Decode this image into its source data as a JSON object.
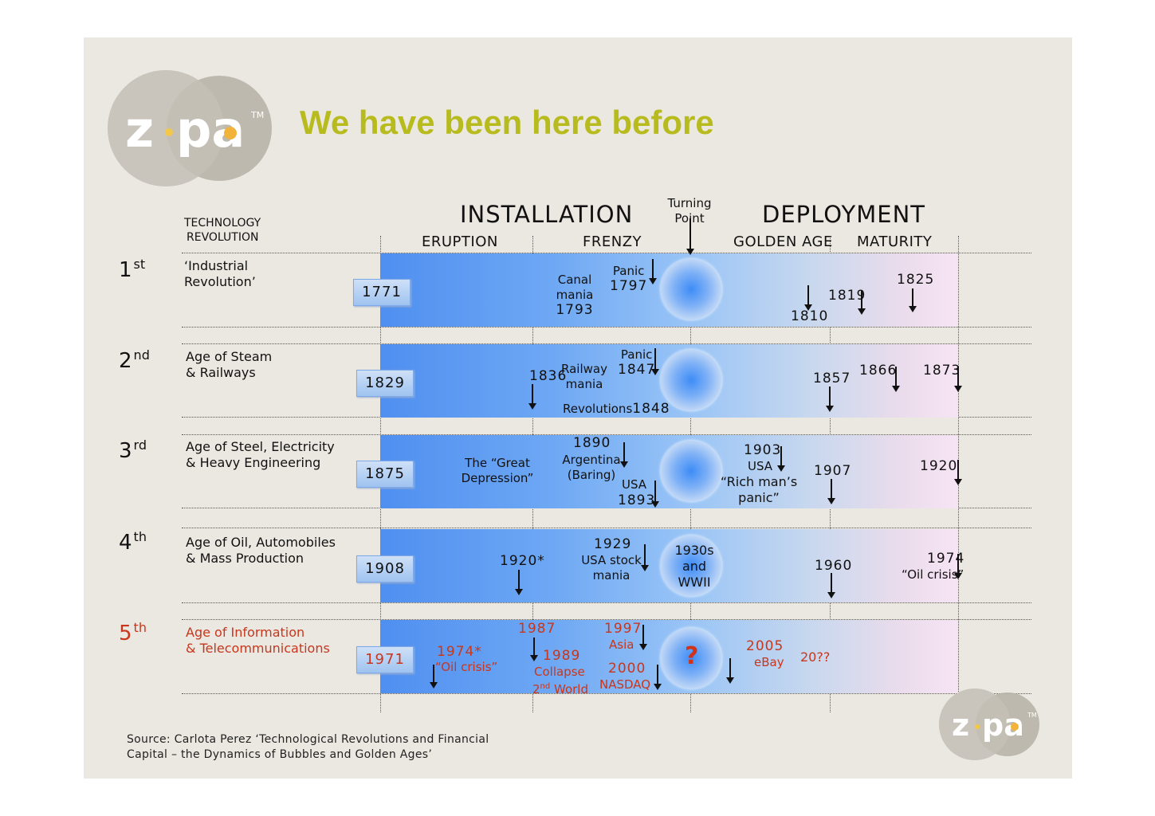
{
  "slide": {
    "title": "We have been here before",
    "logo_text": "zopa",
    "logo_tm": "TM",
    "colors": {
      "title": "#b8bb1e",
      "background": "#ebe8e1",
      "highlight_red": "#c8361c",
      "band_start": "#4f8ff0",
      "band_end": "#f6e4f4"
    }
  },
  "header": {
    "installation": "INSTALLATION",
    "deployment": "DEPLOYMENT",
    "turning_point_1": "Turning",
    "turning_point_2": "Point",
    "eruption": "ERUPTION",
    "frenzy": "FRENZY",
    "golden_age": "GOLDEN AGE",
    "maturity": "MATURITY",
    "tech_rev_1": "TECHNOLOGY",
    "tech_rev_2": "REVOLUTION"
  },
  "revolutions": [
    {
      "ordinal": "1",
      "suffix": "st",
      "name_1": "‘Industrial",
      "name_2": "Revolution’",
      "year": "1771"
    },
    {
      "ordinal": "2",
      "suffix": "nd",
      "name_1": "Age of Steam",
      "name_2": "& Railways",
      "year": "1829"
    },
    {
      "ordinal": "3",
      "suffix": "rd",
      "name_1": "Age of Steel, Electricity",
      "name_2": "& Heavy Engineering",
      "year": "1875"
    },
    {
      "ordinal": "4",
      "suffix": "th",
      "name_1": "Age of Oil, Automobiles",
      "name_2": "& Mass Production",
      "year": "1908"
    },
    {
      "ordinal": "5",
      "suffix": "th",
      "name_1": "Age of Information",
      "name_2": "& Telecommunications",
      "year": "1971"
    }
  ],
  "events": {
    "r1": {
      "canal_1": "Canal",
      "canal_2": "mania",
      "canal_3": "1793",
      "panic": "Panic",
      "panic_year": "1797",
      "y1810": "1810",
      "y1819": "1819",
      "y1825": "1825"
    },
    "r2": {
      "y1836": "1836",
      "railway_1": "Railway",
      "railway_2": "mania",
      "panic": "Panic",
      "panic_year": "1847",
      "revolutions": "Revolutions",
      "rev_year": "1848",
      "y1857": "1857",
      "y1866": "1866",
      "y1873": "1873"
    },
    "r3": {
      "depression_1": "The “Great",
      "depression_2": "Depression”",
      "y1890": "1890",
      "argentina": "Argentina",
      "baring": "(Baring)",
      "usa": "USA",
      "y1893": "1893",
      "y1903": "1903",
      "usa2": "USA",
      "rich_1": "“Rich man’s",
      "rich_2": "panic”",
      "y1907": "1907",
      "y1920": "1920"
    },
    "r4": {
      "y1920s": "1920*",
      "y1929": "1929",
      "stock_1": "USA stock",
      "stock_2": "mania",
      "wwii_1": "1930s",
      "wwii_2": "and",
      "wwii_3": "WWII",
      "y1960": "1960",
      "y1974": "1974",
      "oil": "“Oil crisis”"
    },
    "r5": {
      "y1974s": "1974*",
      "oil": "“Oil crisis”",
      "y1987": "1987",
      "y1989": "1989",
      "collapse": "Collapse",
      "world_2": "2",
      "world_nd": "nd",
      "world_w": " World",
      "y1997": "1997",
      "asia": "Asia",
      "y2000": "2000",
      "nasdaq": "NASDAQ",
      "question": "?",
      "y2005": "2005",
      "ebay": "eBay",
      "y20qq": "20??"
    }
  },
  "source": {
    "line_1": "Source: Carlota Perez ‘Technological Revolutions and Financial",
    "line_2": "Capital – the Dynamics of Bubbles and Golden Ages’"
  }
}
